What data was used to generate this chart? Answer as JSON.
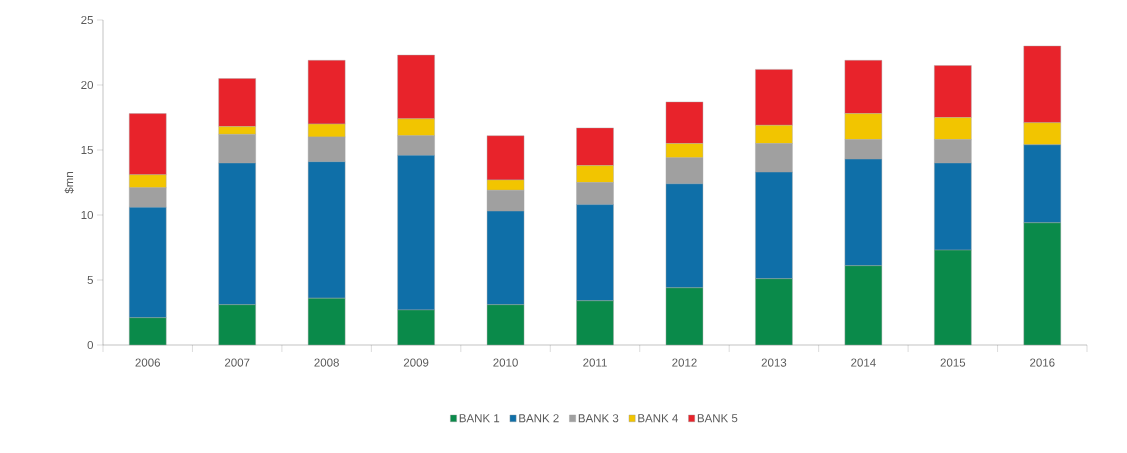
{
  "chart_data": {
    "type": "bar",
    "stacked": true,
    "ylabel": "$mn",
    "categories": [
      "2006",
      "2007",
      "2008",
      "2009",
      "2010",
      "2011",
      "2012",
      "2013",
      "2014",
      "2015",
      "2016"
    ],
    "series": [
      {
        "name": "BANK 1",
        "color": "#0a8a4a",
        "values": [
          2.1,
          3.1,
          3.6,
          2.7,
          3.1,
          3.4,
          4.4,
          5.1,
          6.1,
          7.3,
          9.4
        ]
      },
      {
        "name": "BANK 2",
        "color": "#0f6fa8",
        "values": [
          8.5,
          10.9,
          10.5,
          11.9,
          7.2,
          7.4,
          8.0,
          8.2,
          8.2,
          6.7,
          6.0
        ]
      },
      {
        "name": "BANK 3",
        "color": "#a0a0a0",
        "values": [
          1.5,
          2.2,
          1.9,
          1.5,
          1.6,
          1.7,
          2.0,
          2.2,
          1.5,
          1.8,
          0
        ]
      },
      {
        "name": "BANK 4",
        "color": "#f2c500",
        "values": [
          1.0,
          0.6,
          1.0,
          1.3,
          0.8,
          1.3,
          1.1,
          1.4,
          2.0,
          1.7,
          1.7
        ]
      },
      {
        "name": "BANK 5",
        "color": "#e8232b",
        "values": [
          4.7,
          3.7,
          4.9,
          4.9,
          3.4,
          2.9,
          3.2,
          4.3,
          4.1,
          4.0,
          5.9
        ]
      }
    ],
    "ylim": [
      0,
      25
    ],
    "yticks": [
      0,
      5,
      10,
      15,
      20,
      25
    ],
    "grid": false,
    "legend": "bottom"
  }
}
